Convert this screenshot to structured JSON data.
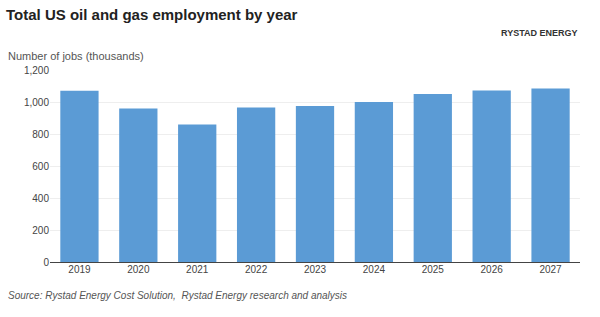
{
  "chart_data": {
    "type": "bar",
    "title": "Total US oil and gas employment by year",
    "subtitle": "Number of jobs (thousands)",
    "categories": [
      "2019",
      "2020",
      "2021",
      "2022",
      "2023",
      "2024",
      "2025",
      "2026",
      "2027"
    ],
    "values": [
      1070,
      960,
      860,
      965,
      975,
      1000,
      1050,
      1072,
      1085
    ],
    "color": "#5b9bd5",
    "ylim": [
      0,
      1200
    ],
    "yticks": [
      0,
      200,
      400,
      600,
      800,
      {
        "value": 1000,
        "label": "1,000"
      },
      {
        "value": 1200,
        "label": "1,200"
      }
    ],
    "grid": true,
    "annotations": [
      "Source: Rystad Energy Cost Solution,  Rystad Energy research and analysis",
      "RYSTAD ENERGY"
    ]
  }
}
